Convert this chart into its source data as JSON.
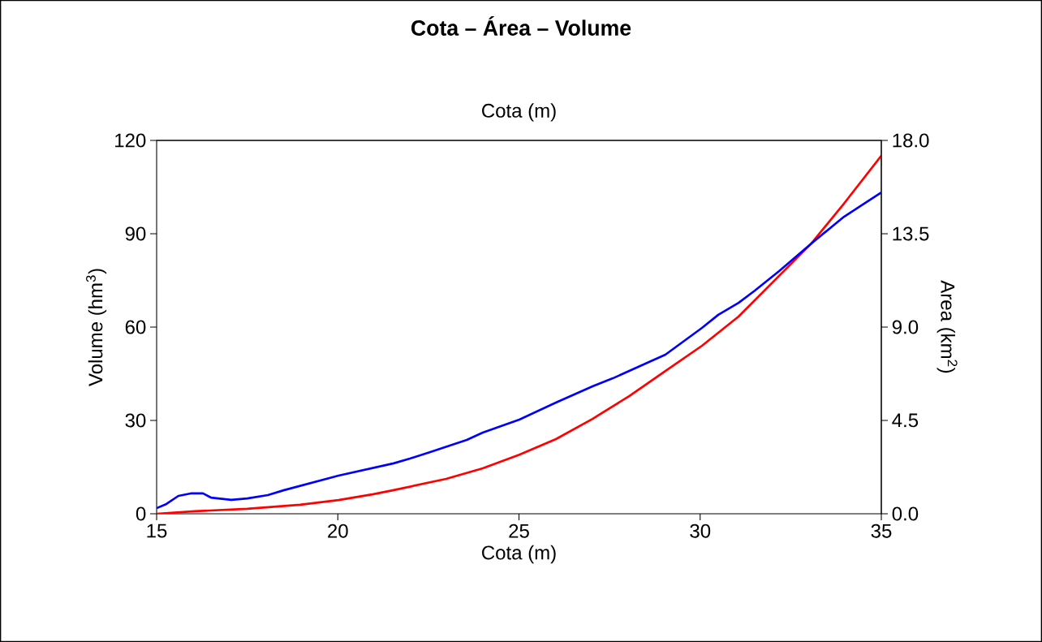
{
  "chart_data": {
    "type": "line",
    "title": "Cota – Área – Volume",
    "x2label": "Cota (m)",
    "xlabel": "Cota (m)",
    "ylabel": "Volume (hm$^{3}$)",
    "y2label": "Area (km$^{2}$)",
    "xlim": [
      15,
      35
    ],
    "xticks": [
      15,
      20,
      25,
      30,
      35
    ],
    "ylim": [
      0,
      120
    ],
    "yticks": [
      0,
      30,
      60,
      90,
      120
    ],
    "y2lim": [
      0,
      18
    ],
    "y2ticks": [
      {
        "value": 0,
        "label": "0.0"
      },
      {
        "value": 4.5,
        "label": "4.5"
      },
      {
        "value": 9,
        "label": "9.0"
      },
      {
        "value": 13.5,
        "label": "13.5"
      },
      {
        "value": 18,
        "label": "18.0"
      }
    ],
    "grid": false,
    "marker": "none",
    "series": [
      {
        "color": "#ff0000",
        "x": [
          15,
          16.05,
          17.5,
          18.96,
          20.02,
          20.98,
          21.54,
          22.99,
          24.0,
          25.01,
          26.02,
          27.03,
          28.04,
          29.04,
          30.05,
          31.06,
          32.06,
          33.07,
          33.97,
          35
        ],
        "values": [
          0,
          0.8,
          1.6,
          2.9,
          4.4,
          6.3,
          7.6,
          11.2,
          14.6,
          19.0,
          24.0,
          30.5,
          37.8,
          45.9,
          54.0,
          63.4,
          75.1,
          86.9,
          99.7,
          115.1
        ]
      },
      {
        "color": "#0000ff",
        "axis": "y2",
        "x": [
          15,
          15.27,
          15.6,
          15.94,
          16.28,
          16.5,
          17.06,
          17.5,
          18.07,
          18.5,
          20.02,
          21.54,
          21.99,
          22.55,
          23.56,
          24.0,
          25.01,
          26.02,
          27.03,
          27.59,
          28.59,
          29.04,
          30.05,
          30.5,
          31.06,
          31.51,
          32.18,
          33.07,
          33.97,
          35
        ],
        "values": [
          0.27,
          0.47,
          0.86,
          0.98,
          0.98,
          0.78,
          0.67,
          0.74,
          0.9,
          1.13,
          1.84,
          2.43,
          2.66,
          2.97,
          3.56,
          3.91,
          4.54,
          5.36,
          6.14,
          6.53,
          7.32,
          7.67,
          8.96,
          9.59,
          10.17,
          10.76,
          11.7,
          13.03,
          14.32,
          15.49
        ]
      }
    ]
  }
}
